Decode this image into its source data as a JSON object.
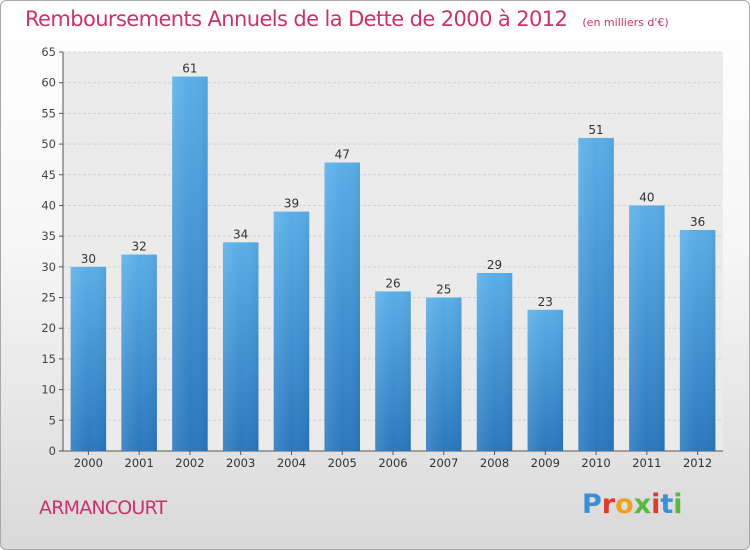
{
  "header": {
    "title": "Remboursements Annuels de la Dette de 2000 à 2012",
    "unit": "(en milliers d'€)"
  },
  "footer": {
    "commune": "ARMANCOURT",
    "brand": "Proxiti"
  },
  "colors": {
    "accent": "#c9336b",
    "bar_top": "#5aaee8",
    "bar_bottom": "#2a78bd",
    "brand_letters": [
      "#3b8fd6",
      "#e0382f",
      "#f0a21e",
      "#58b840",
      "#e0382f",
      "#3b8fd6",
      "#58b840"
    ]
  },
  "chart_data": {
    "type": "bar",
    "title": "Remboursements Annuels de la Dette de 2000 à 2012",
    "subtitle": "(en milliers d'€)",
    "categories": [
      "2000",
      "2001",
      "2002",
      "2003",
      "2004",
      "2005",
      "2006",
      "2007",
      "2008",
      "2009",
      "2010",
      "2011",
      "2012"
    ],
    "values": [
      30,
      32,
      61,
      34,
      39,
      47,
      26,
      25,
      29,
      23,
      51,
      40,
      36
    ],
    "ylim": [
      0,
      65
    ],
    "ytick_step": 5,
    "grid": true,
    "xlabel": "",
    "ylabel": ""
  }
}
